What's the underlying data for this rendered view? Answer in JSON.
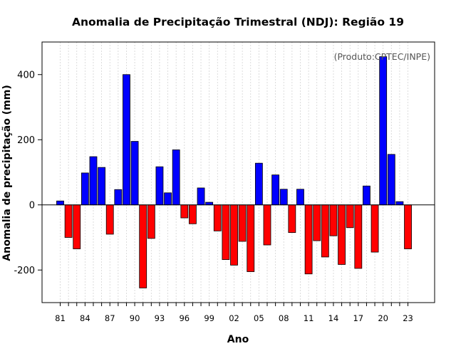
{
  "chart_data": {
    "type": "bar",
    "title": "Anomalia de Precipitação Trimestral (NDJ): Região 19",
    "xlabel": "Ano",
    "ylabel": "Anomalia de precipitação (mm)",
    "credit": "(Produto:CPTEC/INPE)",
    "ylim": [
      -300,
      500
    ],
    "yticks": [
      -200,
      0,
      200,
      400
    ],
    "grid": true,
    "positive_color": "#0000ff",
    "negative_color": "#ff0000",
    "categories": [
      1981,
      1982,
      1983,
      1984,
      1985,
      1986,
      1987,
      1988,
      1989,
      1990,
      1991,
      1992,
      1993,
      1994,
      1995,
      1996,
      1997,
      1998,
      1999,
      2000,
      2001,
      2002,
      2003,
      2004,
      2005,
      2006,
      2007,
      2008,
      2009,
      2010,
      2011,
      2012,
      2013,
      2014,
      2015,
      2016,
      2017,
      2018,
      2019,
      2020,
      2021,
      2022,
      2023
    ],
    "xtick_labels": [
      {
        "index": 0,
        "label": "81"
      },
      {
        "index": 3,
        "label": "84"
      },
      {
        "index": 6,
        "label": "87"
      },
      {
        "index": 9,
        "label": "90"
      },
      {
        "index": 12,
        "label": "93"
      },
      {
        "index": 15,
        "label": "96"
      },
      {
        "index": 18,
        "label": "99"
      },
      {
        "index": 21,
        "label": "02"
      },
      {
        "index": 24,
        "label": "05"
      },
      {
        "index": 27,
        "label": "08"
      },
      {
        "index": 30,
        "label": "11"
      },
      {
        "index": 33,
        "label": "14"
      },
      {
        "index": 36,
        "label": "17"
      },
      {
        "index": 39,
        "label": "20"
      },
      {
        "index": 42,
        "label": "23"
      }
    ],
    "values": [
      12,
      -100,
      -135,
      98,
      148,
      115,
      -90,
      47,
      400,
      195,
      -255,
      -103,
      117,
      37,
      169,
      -40,
      -58,
      52,
      8,
      -80,
      -168,
      -185,
      -112,
      -205,
      128,
      -123,
      92,
      48,
      -85,
      48,
      -212,
      -110,
      -160,
      -95,
      -183,
      -70,
      -195,
      58,
      -145,
      455,
      155,
      10,
      -135
    ]
  }
}
